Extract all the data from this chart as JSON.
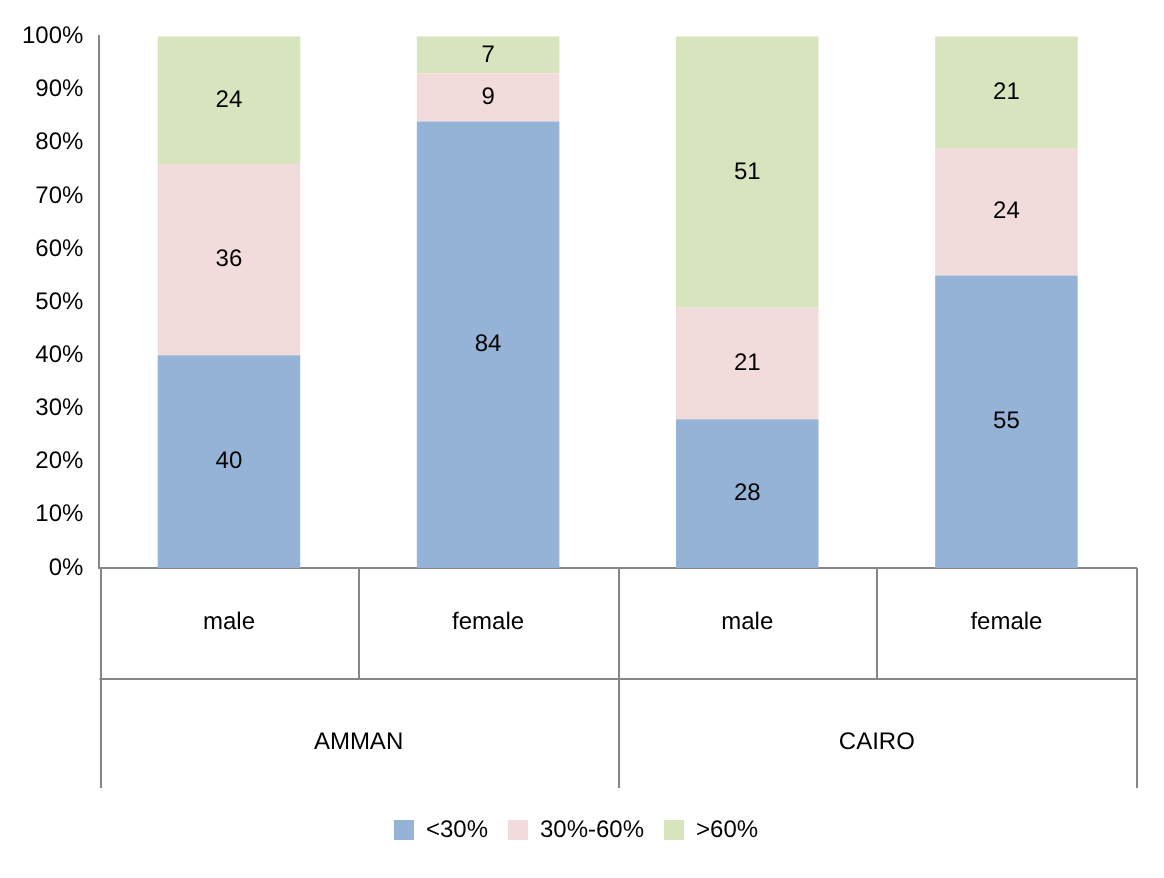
{
  "chart_data": {
    "type": "bar",
    "stacked": true,
    "categories": [
      "male",
      "female",
      "male",
      "female"
    ],
    "series": [
      {
        "name": "<30%",
        "color": "#95b3d7",
        "values": [
          40,
          84,
          28,
          55
        ]
      },
      {
        "name": "30%-60%",
        "color": "#f2dcdb",
        "values": [
          36,
          9,
          21,
          24
        ]
      },
      {
        "name": ">60%",
        "color": "#d7e4bd",
        "values": [
          24,
          7,
          51,
          21
        ]
      }
    ],
    "ylim": [
      0,
      100
    ],
    "yticks": [
      {
        "value": 0,
        "label": "0%"
      },
      {
        "value": 10,
        "label": "10%"
      },
      {
        "value": 20,
        "label": "20%"
      },
      {
        "value": 30,
        "label": "30%"
      },
      {
        "value": 40,
        "label": "40%"
      },
      {
        "value": 50,
        "label": "50%"
      },
      {
        "value": 60,
        "label": "60%"
      },
      {
        "value": 70,
        "label": "70%"
      },
      {
        "value": 80,
        "label": "80%"
      },
      {
        "value": 90,
        "label": "90%"
      },
      {
        "value": 100,
        "label": "100%"
      }
    ],
    "annotations": [
      "AMMAN",
      "CAIRO"
    ],
    "data_labels": true,
    "grid": false,
    "legend": "bottom"
  }
}
